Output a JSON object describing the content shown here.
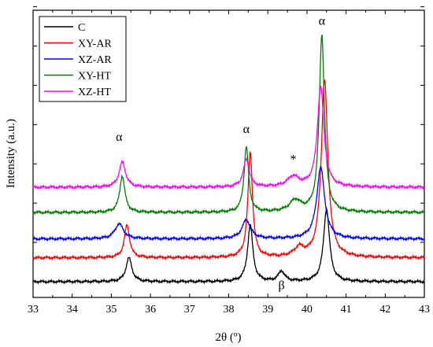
{
  "chart_data": {
    "type": "line",
    "xlabel": "2θ (º)",
    "ylabel": "Intensity (a.u.)",
    "xlim": [
      33,
      43
    ],
    "ylim": [
      0,
      100
    ],
    "x_ticks": [
      "33",
      "34",
      "35",
      "36",
      "37",
      "38",
      "39",
      "40",
      "41",
      "42",
      "43"
    ],
    "y_tick_labels": "none",
    "grid": false,
    "legend_position": "top-left",
    "series": [
      {
        "name": "C",
        "color": "#000000",
        "baseline": 0,
        "peaks": [
          {
            "x": 35.45,
            "h": 9.5,
            "w": 0.09
          },
          {
            "x": 38.55,
            "h": 22.5,
            "w": 0.08
          },
          {
            "x": 39.35,
            "h": 4.0,
            "w": 0.1
          },
          {
            "x": 40.5,
            "h": 29.0,
            "w": 0.09
          }
        ]
      },
      {
        "name": "XY-AR",
        "color": "#ff0000",
        "baseline": 9.5,
        "peaks": [
          {
            "x": 35.4,
            "h": 13.0,
            "w": 0.08
          },
          {
            "x": 38.55,
            "h": 42.0,
            "w": 0.07
          },
          {
            "x": 39.8,
            "h": 3.5,
            "w": 0.15
          },
          {
            "x": 40.45,
            "h": 70.5,
            "w": 0.1
          }
        ]
      },
      {
        "name": "XZ-AR",
        "color": "#0000ff",
        "baseline": 17.0,
        "peaks": [
          {
            "x": 35.2,
            "h": 6.0,
            "w": 0.13
          },
          {
            "x": 38.45,
            "h": 7.5,
            "w": 0.13
          },
          {
            "x": 40.35,
            "h": 28.5,
            "w": 0.12
          }
        ]
      },
      {
        "name": "XY-HT",
        "color": "#008000",
        "baseline": 27.5,
        "peaks": [
          {
            "x": 35.28,
            "h": 14.5,
            "w": 0.08
          },
          {
            "x": 38.45,
            "h": 26.0,
            "w": 0.07
          },
          {
            "x": 39.7,
            "h": 4.5,
            "w": 0.18
          },
          {
            "x": 40.38,
            "h": 70.5,
            "w": 0.08
          }
        ]
      },
      {
        "name": "XZ-HT",
        "color": "#ff00ff",
        "baseline": 37.5,
        "peaks": [
          {
            "x": 35.28,
            "h": 10.0,
            "w": 0.1
          },
          {
            "x": 38.45,
            "h": 11.0,
            "w": 0.09
          },
          {
            "x": 39.65,
            "h": 4.0,
            "w": 0.18
          },
          {
            "x": 40.35,
            "h": 40.0,
            "w": 0.1
          }
        ]
      }
    ],
    "annotations": [
      {
        "text": "α",
        "x": 35.2,
        "y": 56
      },
      {
        "text": "α",
        "x": 38.45,
        "y": 59
      },
      {
        "text": "*",
        "x": 39.65,
        "y": 47
      },
      {
        "text": "α",
        "x": 40.38,
        "y": 102
      },
      {
        "text": "β",
        "x": 39.35,
        "y": -3
      }
    ]
  }
}
